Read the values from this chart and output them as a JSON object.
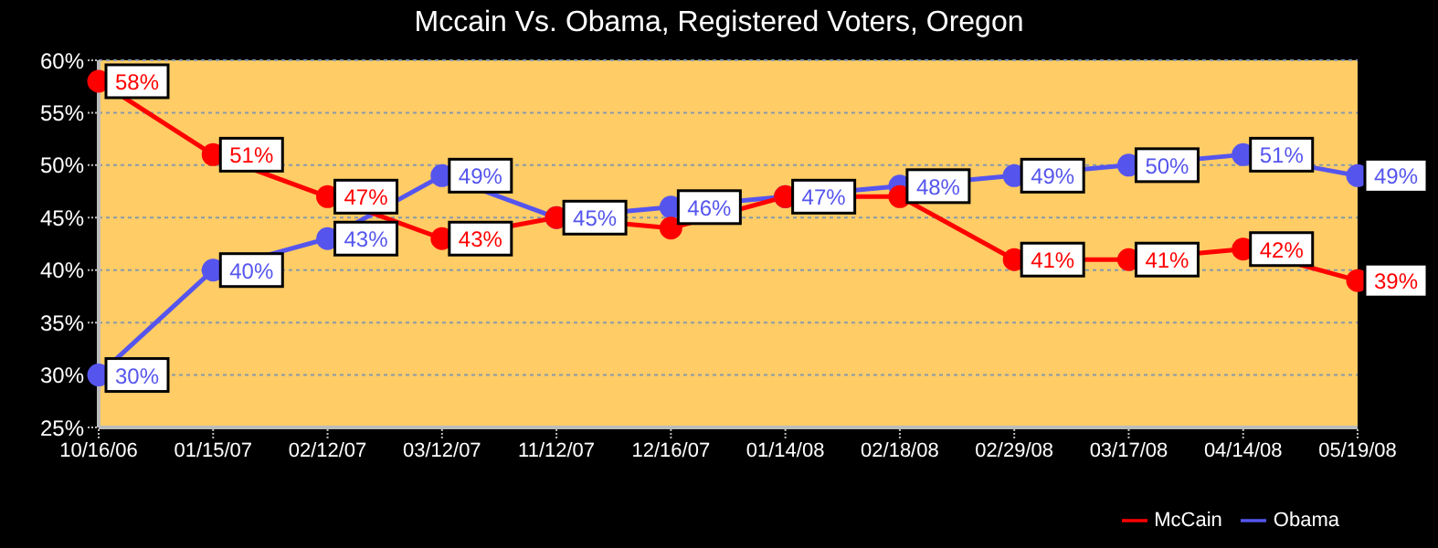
{
  "chart_data": {
    "type": "line",
    "title": "Mccain Vs. Obama, Registered Voters, Oregon",
    "categories": [
      "10/16/06",
      "01/15/07",
      "02/12/07",
      "03/12/07",
      "11/12/07",
      "12/16/07",
      "01/14/08",
      "02/18/08",
      "02/29/08",
      "03/17/08",
      "04/14/08",
      "05/19/08"
    ],
    "series": [
      {
        "name": "McCain",
        "color": "#ff0000",
        "values": [
          58,
          51,
          47,
          43,
          45,
          44,
          47,
          47,
          41,
          41,
          42,
          39
        ],
        "value_labels": [
          "58%",
          "51%",
          "47%",
          "43%",
          null,
          null,
          null,
          null,
          "41%",
          "41%",
          "42%",
          "39%"
        ]
      },
      {
        "name": "Obama",
        "color": "#5555ee",
        "values": [
          30,
          40,
          43,
          49,
          45,
          46,
          47,
          48,
          49,
          50,
          51,
          49
        ],
        "value_labels": [
          "30%",
          "40%",
          "43%",
          "49%",
          "45%",
          "46%",
          "47%",
          "48%",
          "49%",
          "50%",
          "51%",
          "49%"
        ]
      }
    ],
    "ylim": [
      25,
      60
    ],
    "yticks": [
      {
        "value": 25,
        "label": "25%"
      },
      {
        "value": 30,
        "label": "30%"
      },
      {
        "value": 35,
        "label": "35%"
      },
      {
        "value": 40,
        "label": "40%"
      },
      {
        "value": 45,
        "label": "45%"
      },
      {
        "value": 50,
        "label": "50%"
      },
      {
        "value": 55,
        "label": "55%"
      },
      {
        "value": 60,
        "label": "60%"
      }
    ],
    "grid": "y",
    "legend": "bottom right",
    "marker": "circle",
    "line_style": "solid"
  }
}
